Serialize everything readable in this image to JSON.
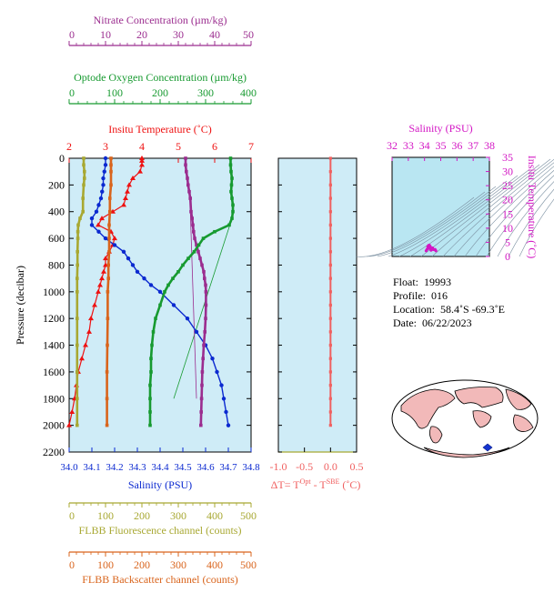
{
  "colors": {
    "nitrate": "#9b2d8f",
    "oxygen": "#179a30",
    "temperature": "#ee1111",
    "salinity": "#0b29d0",
    "fluorescence": "#a8a832",
    "backscatter": "#d9641c",
    "delta_t": "#f06060",
    "ts_magenta": "#d316c4",
    "panel_bg": "#cfecf7",
    "ts_bg": "#b9e6f2",
    "land": "#f2b9b9",
    "ocean": "#ffffff"
  },
  "axes": {
    "nitrate": {
      "title": "Nitrate Concentration (µm/kg)",
      "ticks": [
        "0",
        "10",
        "20",
        "30",
        "40",
        "50"
      ]
    },
    "oxygen": {
      "title": "Optode Oxygen Concentration (µm/kg)",
      "ticks": [
        "0",
        "100",
        "200",
        "300",
        "400"
      ]
    },
    "temperature": {
      "title": "Insitu Temperature (˚C)",
      "ticks": [
        "2",
        "3",
        "4",
        "5",
        "6",
        "7"
      ]
    },
    "pressure": {
      "title": "Pressure (decibar)",
      "ticks": [
        "0",
        "200",
        "400",
        "600",
        "800",
        "1000",
        "1200",
        "1400",
        "1600",
        "1800",
        "2000",
        "2200"
      ]
    },
    "salinity": {
      "title": "Salinity (PSU)",
      "ticks": [
        "34.0",
        "34.1",
        "34.2",
        "34.3",
        "34.4",
        "34.5",
        "34.6",
        "34.7",
        "34.8"
      ]
    },
    "delta_t": {
      "title_prefix": "ΔT= T",
      "sup1": "Opt",
      "mid": " - T",
      "sup2": "SBE",
      "suffix": " (˚C)",
      "ticks": [
        "-1.0",
        "-0.5",
        "0.0",
        "0.5"
      ]
    },
    "fluorescence": {
      "title": "FLBB Fluorescence channel (counts)",
      "ticks": [
        "0",
        "100",
        "200",
        "300",
        "400",
        "500"
      ]
    },
    "backscatter": {
      "title": "FLBB Backscatter channel (counts)",
      "ticks": [
        "0",
        "100",
        "200",
        "300",
        "400",
        "500"
      ]
    },
    "ts_salinity": {
      "title": "Salinity (PSU)",
      "ticks": [
        "32",
        "33",
        "34",
        "35",
        "36",
        "37",
        "38"
      ]
    },
    "ts_temperature": {
      "title": "Insitu Temperature (˚C)",
      "ticks": [
        "0",
        "5",
        "10",
        "15",
        "20",
        "25",
        "30",
        "35"
      ]
    }
  },
  "info": {
    "float_label": "Float:",
    "float_value": "19993",
    "profile_label": "Profile:",
    "profile_value": "016",
    "location_label": "Location:",
    "location_value": "58.4˚S  -69.3˚E",
    "date_label": "Date:",
    "date_value": "06/22/2023"
  },
  "chart_data": [
    {
      "type": "line",
      "y_name": "pressure",
      "ylim": [
        2200,
        0
      ],
      "series": [
        {
          "name": "Insitu Temperature",
          "axis": "temperature",
          "xlim": [
            2,
            7
          ],
          "pressure": [
            0,
            20,
            50,
            100,
            150,
            200,
            250,
            300,
            350,
            400,
            450,
            500,
            550,
            600,
            650,
            700,
            750,
            800,
            850,
            900,
            950,
            1000,
            1100,
            1200,
            1300,
            1400,
            1500,
            1600,
            1700,
            1800,
            1900,
            2000
          ],
          "values": [
            4.0,
            4.0,
            4.0,
            3.95,
            3.75,
            3.65,
            3.6,
            3.55,
            3.5,
            3.2,
            2.9,
            2.8,
            3.15,
            3.25,
            3.2,
            3.1,
            3.0,
            3.0,
            2.95,
            2.9,
            2.85,
            2.8,
            2.7,
            2.6,
            2.55,
            2.45,
            2.35,
            2.25,
            2.2,
            2.15,
            2.08,
            2.0
          ]
        },
        {
          "name": "Salinity",
          "axis": "salinity",
          "xlim": [
            34.0,
            34.8
          ],
          "pressure": [
            0,
            50,
            100,
            150,
            200,
            250,
            300,
            350,
            400,
            450,
            500,
            550,
            600,
            650,
            700,
            750,
            800,
            850,
            900,
            950,
            1000,
            1100,
            1200,
            1300,
            1400,
            1500,
            1600,
            1700,
            1800,
            1900,
            2000
          ],
          "values": [
            34.16,
            34.16,
            34.155,
            34.15,
            34.15,
            34.145,
            34.14,
            34.13,
            34.12,
            34.1,
            34.1,
            34.13,
            34.16,
            34.2,
            34.24,
            34.26,
            34.28,
            34.3,
            34.33,
            34.36,
            34.4,
            34.46,
            34.52,
            34.56,
            34.6,
            34.63,
            34.65,
            34.67,
            34.68,
            34.69,
            34.7
          ]
        },
        {
          "name": "Nitrate",
          "axis": "nitrate",
          "xlim": [
            0,
            50
          ],
          "pressure": [
            0,
            50,
            100,
            150,
            200,
            250,
            300,
            400,
            450,
            500,
            550,
            600,
            650,
            700,
            750,
            800,
            850,
            900,
            950,
            1000,
            1100,
            1200,
            1300,
            1400,
            1500,
            1600,
            1700,
            1800,
            1900,
            2000
          ],
          "values": [
            32.0,
            32.0,
            32.2,
            32.5,
            32.7,
            33.0,
            33.3,
            33.5,
            33.8,
            34.0,
            34.2,
            34.5,
            35.0,
            35.5,
            36.0,
            36.5,
            37.0,
            37.2,
            37.5,
            37.6,
            37.6,
            37.5,
            37.3,
            37.0,
            36.8,
            36.6,
            36.5,
            36.4,
            36.3,
            36.2
          ]
        },
        {
          "name": "Oxygen",
          "axis": "oxygen",
          "xlim": [
            0,
            400
          ],
          "pressure": [
            0,
            50,
            100,
            150,
            200,
            250,
            300,
            350,
            400,
            450,
            500,
            550,
            600,
            650,
            700,
            750,
            800,
            850,
            900,
            950,
            1000,
            1100,
            1200,
            1300,
            1400,
            1500,
            1600,
            1700,
            1800,
            1900,
            2000
          ],
          "values": [
            355,
            355,
            356,
            358,
            357,
            356,
            358,
            360,
            360,
            358,
            352,
            320,
            295,
            285,
            275,
            262,
            250,
            240,
            228,
            218,
            210,
            200,
            190,
            185,
            182,
            180,
            180,
            178,
            178,
            178,
            178
          ]
        },
        {
          "name": "FLBB Fluorescence",
          "axis": "fluorescence",
          "xlim": [
            0,
            500
          ],
          "pressure": [
            0,
            50,
            100,
            150,
            200,
            300,
            400,
            450,
            500,
            550,
            600,
            700,
            800,
            900,
            1000,
            1200,
            1400,
            1600,
            1800,
            2000
          ],
          "values": [
            40,
            40,
            42,
            42,
            40,
            38,
            38,
            30,
            25,
            24,
            24,
            23,
            23,
            22,
            22,
            22,
            22,
            22,
            22,
            22
          ]
        },
        {
          "name": "FLBB Backscatter",
          "axis": "backscatter",
          "xlim": [
            0,
            500
          ],
          "pressure": [
            0,
            50,
            100,
            200,
            300,
            400,
            500,
            600,
            700,
            800,
            900,
            1000,
            1200,
            1400,
            1600,
            1800,
            2000
          ],
          "values": [
            115,
            115,
            115,
            115,
            112,
            112,
            110,
            110,
            110,
            108,
            108,
            106,
            106,
            105,
            104,
            104,
            104
          ]
        }
      ],
      "guide_lines": [
        {
          "axis": "oxygen",
          "from": [
            360,
            430
          ],
          "to": [
            230,
            1800
          ]
        },
        {
          "axis": "nitrate",
          "from": [
            33.3,
            390
          ],
          "to": [
            35,
            1800
          ]
        }
      ]
    },
    {
      "type": "line",
      "name": "delta_t",
      "xlim": [
        -1.0,
        0.5
      ],
      "ylim": [
        2200,
        0
      ],
      "pressure": [
        0,
        100,
        200,
        300,
        400,
        500,
        600,
        700,
        800,
        900,
        1000,
        1100,
        1200,
        1300,
        1400,
        1500,
        1600,
        1700,
        1800,
        1900,
        2000
      ],
      "values": [
        0.0,
        0.0,
        0.0,
        0.0,
        0.0,
        0.0,
        0.0,
        0.0,
        0.0,
        0.0,
        0.0,
        0.0,
        0.0,
        0.0,
        0.0,
        0.0,
        0.0,
        0.0,
        0.0,
        0.0,
        0.0
      ]
    },
    {
      "type": "scatter",
      "name": "ts_diagram",
      "xlim": [
        32,
        38
      ],
      "ylim": [
        0,
        35
      ],
      "salinity": [
        34.1,
        34.15,
        34.2,
        34.25,
        34.3,
        34.35,
        34.5,
        34.65,
        34.7,
        34.4,
        34.2
      ],
      "temperature": [
        2.0,
        2.5,
        3.5,
        3.9,
        4.0,
        3.6,
        3.0,
        2.5,
        2.0,
        2.2,
        2.8
      ]
    }
  ]
}
